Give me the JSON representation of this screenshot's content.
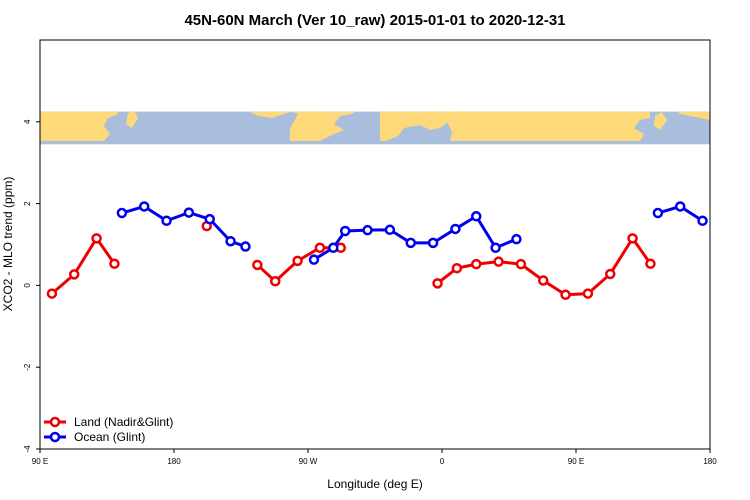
{
  "chart_data": {
    "type": "line",
    "title": "45N-60N March (Ver 10_raw)   2015-01-01 to 2020-12-31",
    "xlabel": "Longitude (deg E)",
    "ylabel": "XCO2 - MLO trend (ppm)",
    "xlim": [
      90,
      540
    ],
    "ylim": [
      -4,
      6
    ],
    "x_ticks": [
      {
        "value": 90,
        "label": "90 E"
      },
      {
        "value": 180,
        "label": "180"
      },
      {
        "value": 270,
        "label": "90 W"
      },
      {
        "value": 360,
        "label": "0"
      },
      {
        "value": 450,
        "label": "90 E"
      },
      {
        "value": 540,
        "label": "180"
      }
    ],
    "y_ticks": [
      {
        "value": -4,
        "label": "-4"
      },
      {
        "value": -2,
        "label": "-2"
      },
      {
        "value": 0,
        "label": "0"
      },
      {
        "value": 2,
        "label": "2"
      },
      {
        "value": 4,
        "label": "4"
      }
    ],
    "map_band": {
      "y_range": [
        3.45,
        4.25
      ],
      "ocean_color": "#a9bddc",
      "land_color": "#fdd97a"
    },
    "legend_position": "bottom-left",
    "series": [
      {
        "name": "Land (Nadir&Glint)",
        "color": "#ee0000",
        "segments": [
          [
            [
              98,
              -0.2
            ],
            [
              113,
              0.27
            ],
            [
              128,
              1.15
            ],
            [
              140,
              0.53
            ]
          ],
          [
            [
              202,
              1.45
            ]
          ],
          [
            [
              236,
              0.5
            ],
            [
              248,
              0.1
            ],
            [
              263,
              0.6
            ],
            [
              278,
              0.92
            ],
            [
              292,
              0.92
            ]
          ],
          [
            [
              357,
              0.05
            ],
            [
              370,
              0.42
            ],
            [
              383,
              0.52
            ],
            [
              398,
              0.58
            ],
            [
              413,
              0.52
            ],
            [
              428,
              0.12
            ],
            [
              443,
              -0.23
            ],
            [
              458,
              -0.2
            ],
            [
              473,
              0.28
            ],
            [
              488,
              1.15
            ],
            [
              500,
              0.53
            ]
          ]
        ]
      },
      {
        "name": "Ocean (Glint)",
        "color": "#0000ee",
        "segments": [
          [
            [
              145,
              1.77
            ],
            [
              160,
              1.93
            ],
            [
              175,
              1.58
            ],
            [
              190,
              1.78
            ],
            [
              204,
              1.62
            ],
            [
              218,
              1.08
            ],
            [
              228,
              0.95
            ]
          ],
          [
            [
              274,
              0.63
            ],
            [
              287,
              0.92
            ],
            [
              295,
              1.33
            ],
            [
              310,
              1.35
            ],
            [
              325,
              1.36
            ],
            [
              339,
              1.04
            ],
            [
              354,
              1.04
            ],
            [
              369,
              1.38
            ],
            [
              383,
              1.69
            ],
            [
              396,
              0.92
            ],
            [
              410,
              1.13
            ]
          ],
          [
            [
              505,
              1.77
            ],
            [
              520,
              1.93
            ],
            [
              535,
              1.58
            ]
          ]
        ]
      }
    ]
  }
}
